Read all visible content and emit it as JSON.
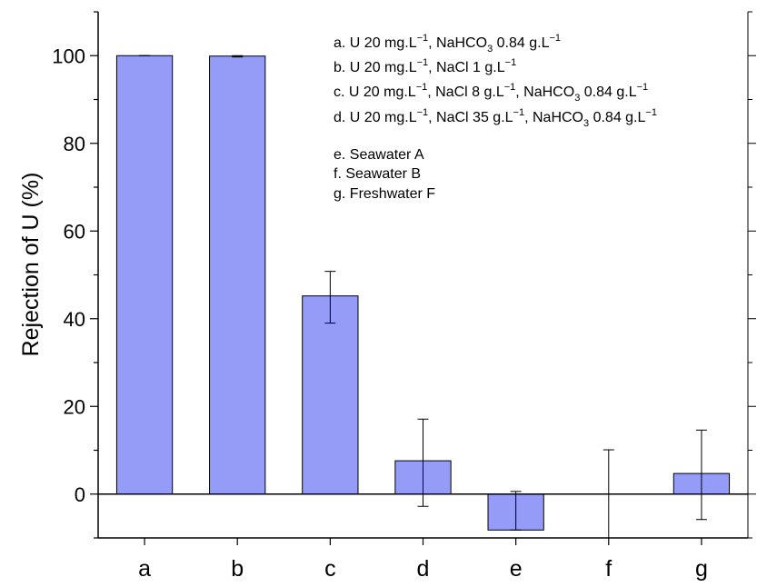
{
  "chart_data": {
    "type": "bar",
    "title": "",
    "xlabel": "",
    "ylabel": "Rejection of U (%)",
    "ylim": [
      -10,
      110
    ],
    "yticks": [
      0,
      20,
      40,
      60,
      80,
      100
    ],
    "categories": [
      "a",
      "b",
      "c",
      "d",
      "e",
      "f",
      "g"
    ],
    "values": [
      100,
      99.9,
      45.2,
      7.6,
      -8.2,
      0,
      4.7
    ],
    "error_upper": [
      100,
      100,
      50.8,
      17.1,
      0.6,
      10.1,
      14.6
    ],
    "error_lower": [
      100,
      99.7,
      39.0,
      -2.8,
      -8.2,
      -10,
      -5.8
    ],
    "bar_color": "#959cf7",
    "grid": false,
    "legend_position": "top-right",
    "annotations": [
      {
        "label": "a. U 20 mg.L",
        "parts": [
          {
            "t": "a. U 20 mg.L"
          },
          {
            "t": "−1",
            "s": "sup"
          },
          {
            "t": ", NaHCO"
          },
          {
            "t": "3",
            "s": "sub"
          },
          {
            "t": " 0.84 g.L"
          },
          {
            "t": "−1",
            "s": "sup"
          }
        ]
      },
      {
        "label": "b. U 20 mg.L",
        "parts": [
          {
            "t": "b. U 20 mg.L"
          },
          {
            "t": "−1",
            "s": "sup"
          },
          {
            "t": ", NaCl 1 g.L"
          },
          {
            "t": "−1",
            "s": "sup"
          }
        ]
      },
      {
        "label": "c. U 20 mg.L",
        "parts": [
          {
            "t": "c. U 20 mg.L"
          },
          {
            "t": "−1",
            "s": "sup"
          },
          {
            "t": ", NaCl 8 g.L"
          },
          {
            "t": "−1",
            "s": "sup"
          },
          {
            "t": ", NaHCO"
          },
          {
            "t": "3",
            "s": "sub"
          },
          {
            "t": " 0.84 g.L"
          },
          {
            "t": "−1",
            "s": "sup"
          }
        ]
      },
      {
        "label": "d. U 20 mg.L",
        "parts": [
          {
            "t": "d. U 20 mg.L"
          },
          {
            "t": "−1",
            "s": "sup"
          },
          {
            "t": ", NaCl 35 g.L"
          },
          {
            "t": "−1",
            "s": "sup"
          },
          {
            "t": ", NaHCO"
          },
          {
            "t": "3",
            "s": "sub"
          },
          {
            "t": " 0.84 g.L"
          },
          {
            "t": "−1",
            "s": "sup"
          }
        ]
      },
      {
        "label": "e. Seawater A",
        "parts": [
          {
            "t": "e. Seawater A"
          }
        ]
      },
      {
        "label": "f. Seawater B",
        "parts": [
          {
            "t": "f. Seawater B"
          }
        ]
      },
      {
        "label": "g. Freshwater F",
        "parts": [
          {
            "t": "g. Freshwater F"
          }
        ]
      }
    ]
  }
}
